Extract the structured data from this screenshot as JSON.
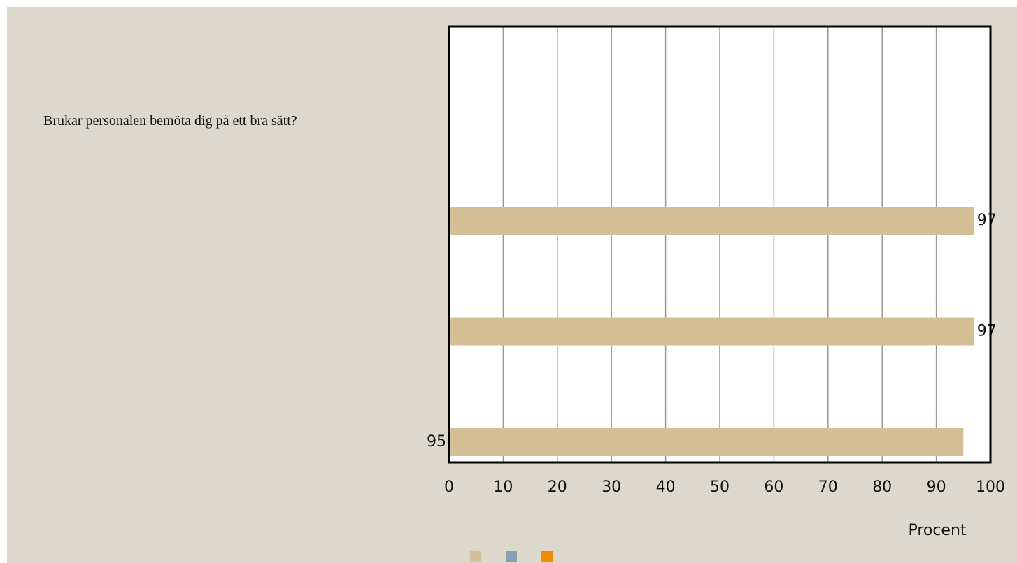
{
  "question": "Brukar personalen bemöta dig på ett bra sätt?",
  "chart_data": {
    "type": "barh",
    "series": [
      {
        "color": "#d3bf96",
        "values": [
          97,
          97,
          95
        ]
      },
      {
        "color": "#86a0b4",
        "values": [
          null,
          null,
          null
        ]
      },
      {
        "color": "#f28c00",
        "values": [
          null,
          null,
          null
        ]
      }
    ],
    "x_label": "Procent",
    "xlim": [
      0,
      100
    ],
    "xticks": [
      0,
      10,
      20,
      30,
      40,
      50,
      60,
      70,
      80,
      90,
      100
    ],
    "grid": true
  }
}
